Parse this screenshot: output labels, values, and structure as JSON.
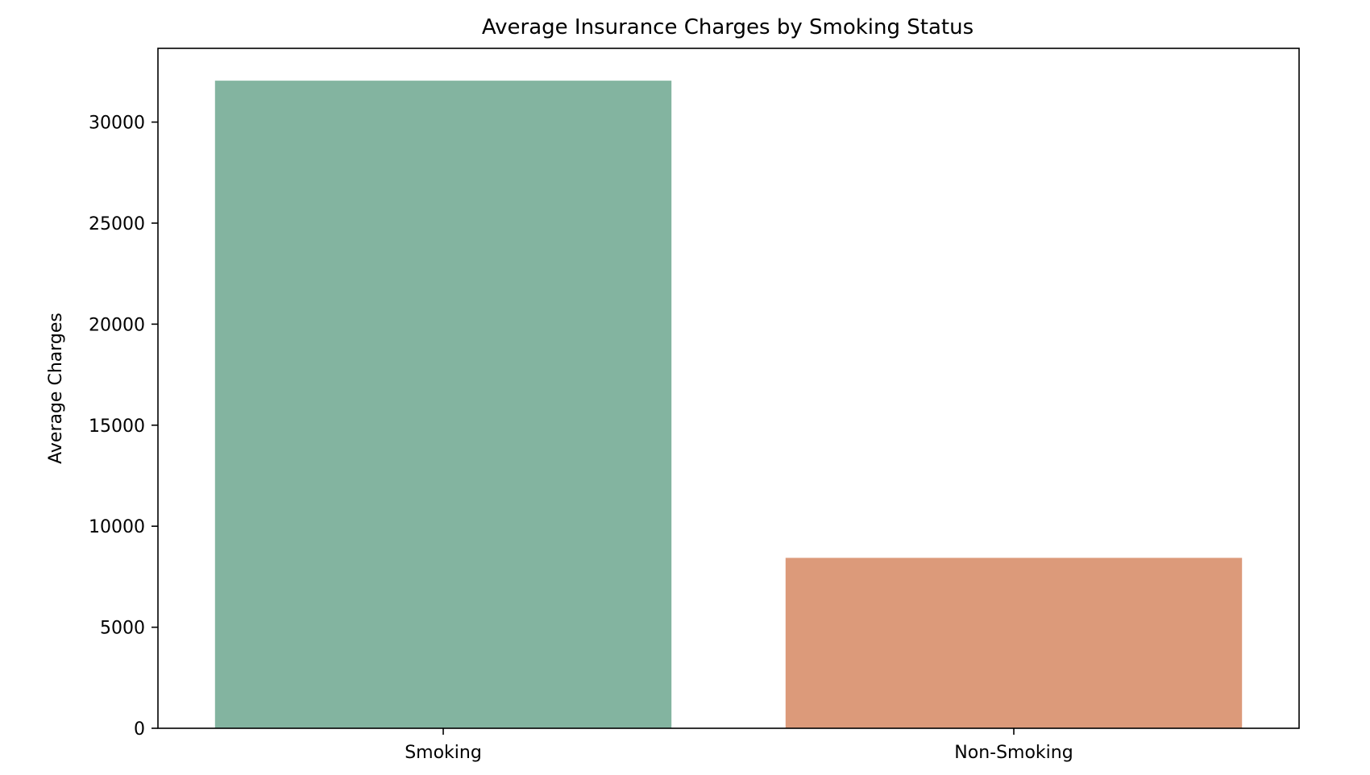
{
  "chart_data": {
    "type": "bar",
    "title": "Average Insurance Charges by Smoking Status",
    "xlabel": "",
    "ylabel": "Average Charges",
    "categories": [
      "Smoking",
      "Non-Smoking"
    ],
    "values": [
      32050,
      8434
    ],
    "colors": [
      "#83b4a0",
      "#dc9a7a"
    ],
    "ylim": [
      0,
      33650
    ],
    "yticks": [
      0,
      5000,
      10000,
      15000,
      20000,
      25000,
      30000
    ],
    "grid": false,
    "legend": "none"
  }
}
